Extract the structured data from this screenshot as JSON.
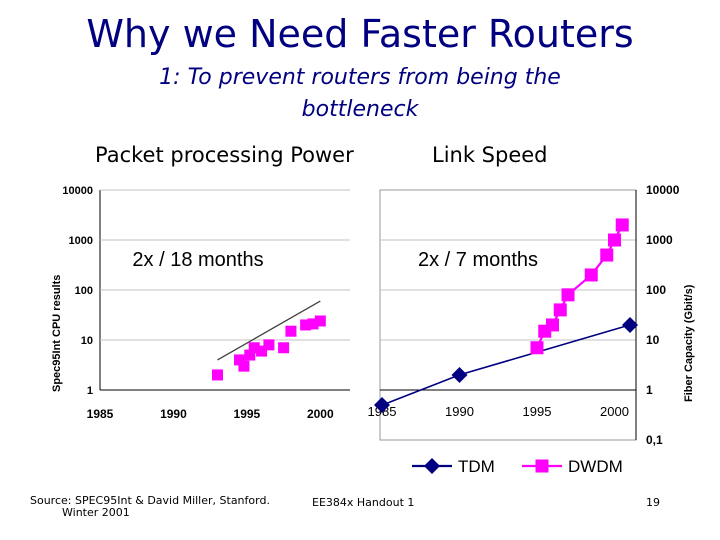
{
  "slide": {
    "title": "Why we Need Faster Routers",
    "subtitle": "1: To prevent routers from being the bottleneck",
    "left_header": "Packet processing Power",
    "right_header": "Link Speed",
    "footer_source": "Source: SPEC95Int & David Miller, Stanford.",
    "footer_date": "Winter 2001",
    "footer_course": "EE384x Handout 1",
    "page_number": "19"
  },
  "chart_data": [
    {
      "type": "scatter",
      "ylabel": "Spec95Int CPU results",
      "annotation": "2x / 18 months",
      "x_ticks": [
        "1985",
        "1990",
        "1995",
        "2000"
      ],
      "y_ticks": [
        "1",
        "10",
        "100",
        "1000",
        "10000"
      ],
      "xlim": [
        1985,
        2001
      ],
      "ylim": [
        1,
        10000
      ],
      "y_scale": "log",
      "marker_color": "#ff00ff",
      "trend_color": "#404040",
      "trend": [
        [
          1993,
          4
        ],
        [
          2000,
          60
        ]
      ],
      "points": [
        [
          1993,
          2
        ],
        [
          1994.5,
          4
        ],
        [
          1994.8,
          3
        ],
        [
          1995.2,
          5
        ],
        [
          1995.5,
          7
        ],
        [
          1996,
          6
        ],
        [
          1996.5,
          8
        ],
        [
          1997.5,
          7
        ],
        [
          1998,
          15
        ],
        [
          1999,
          20
        ],
        [
          1999.5,
          21
        ],
        [
          2000,
          24
        ]
      ]
    },
    {
      "type": "line",
      "ylabel": "Fiber Capacity (Gbit/s)",
      "annotation": "2x / 7 months",
      "x_ticks": [
        "1985",
        "1990",
        "1995",
        "2000"
      ],
      "y_ticks": [
        "0,1",
        "1",
        "10",
        "100",
        "1000",
        "10000"
      ],
      "xlim": [
        1985,
        2001
      ],
      "ylim": [
        0.1,
        10000
      ],
      "y_scale": "log",
      "legend_position": "bottom",
      "series": [
        {
          "name": "TDM",
          "color": "#000080",
          "marker": "diamond",
          "points": [
            [
              1985,
              0.5
            ],
            [
              1990,
              2
            ],
            [
              2001,
              20
            ]
          ]
        },
        {
          "name": "DWDM",
          "color": "#ff00ff",
          "marker": "square",
          "points": [
            [
              1995,
              7
            ],
            [
              1995.5,
              15
            ],
            [
              1996,
              20
            ],
            [
              1996.5,
              40
            ],
            [
              1997,
              80
            ],
            [
              1998.5,
              200
            ],
            [
              1999.5,
              500
            ],
            [
              2000,
              1000
            ],
            [
              2000.5,
              2000
            ]
          ]
        }
      ]
    }
  ]
}
